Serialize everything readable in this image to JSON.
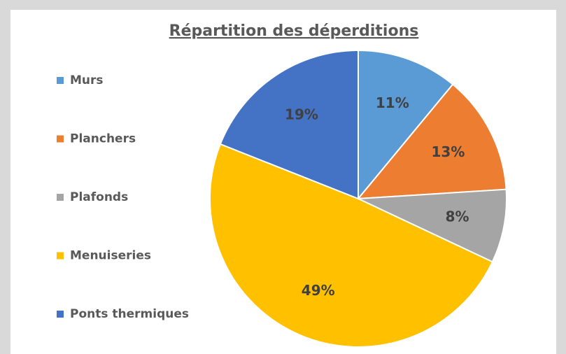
{
  "chart_data": {
    "type": "pie",
    "title": "Répartition des déperditions",
    "categories": [
      "Murs",
      "Planchers",
      "Plafonds",
      "Menuiseries",
      "Ponts thermiques"
    ],
    "values": [
      11,
      13,
      8,
      49,
      19
    ],
    "value_labels": [
      "11%",
      "13%",
      "8%",
      "49%",
      "19%"
    ],
    "colors": [
      "#5b9bd5",
      "#ed7d31",
      "#a5a5a5",
      "#ffc000",
      "#4472c4"
    ],
    "legend": "left"
  }
}
